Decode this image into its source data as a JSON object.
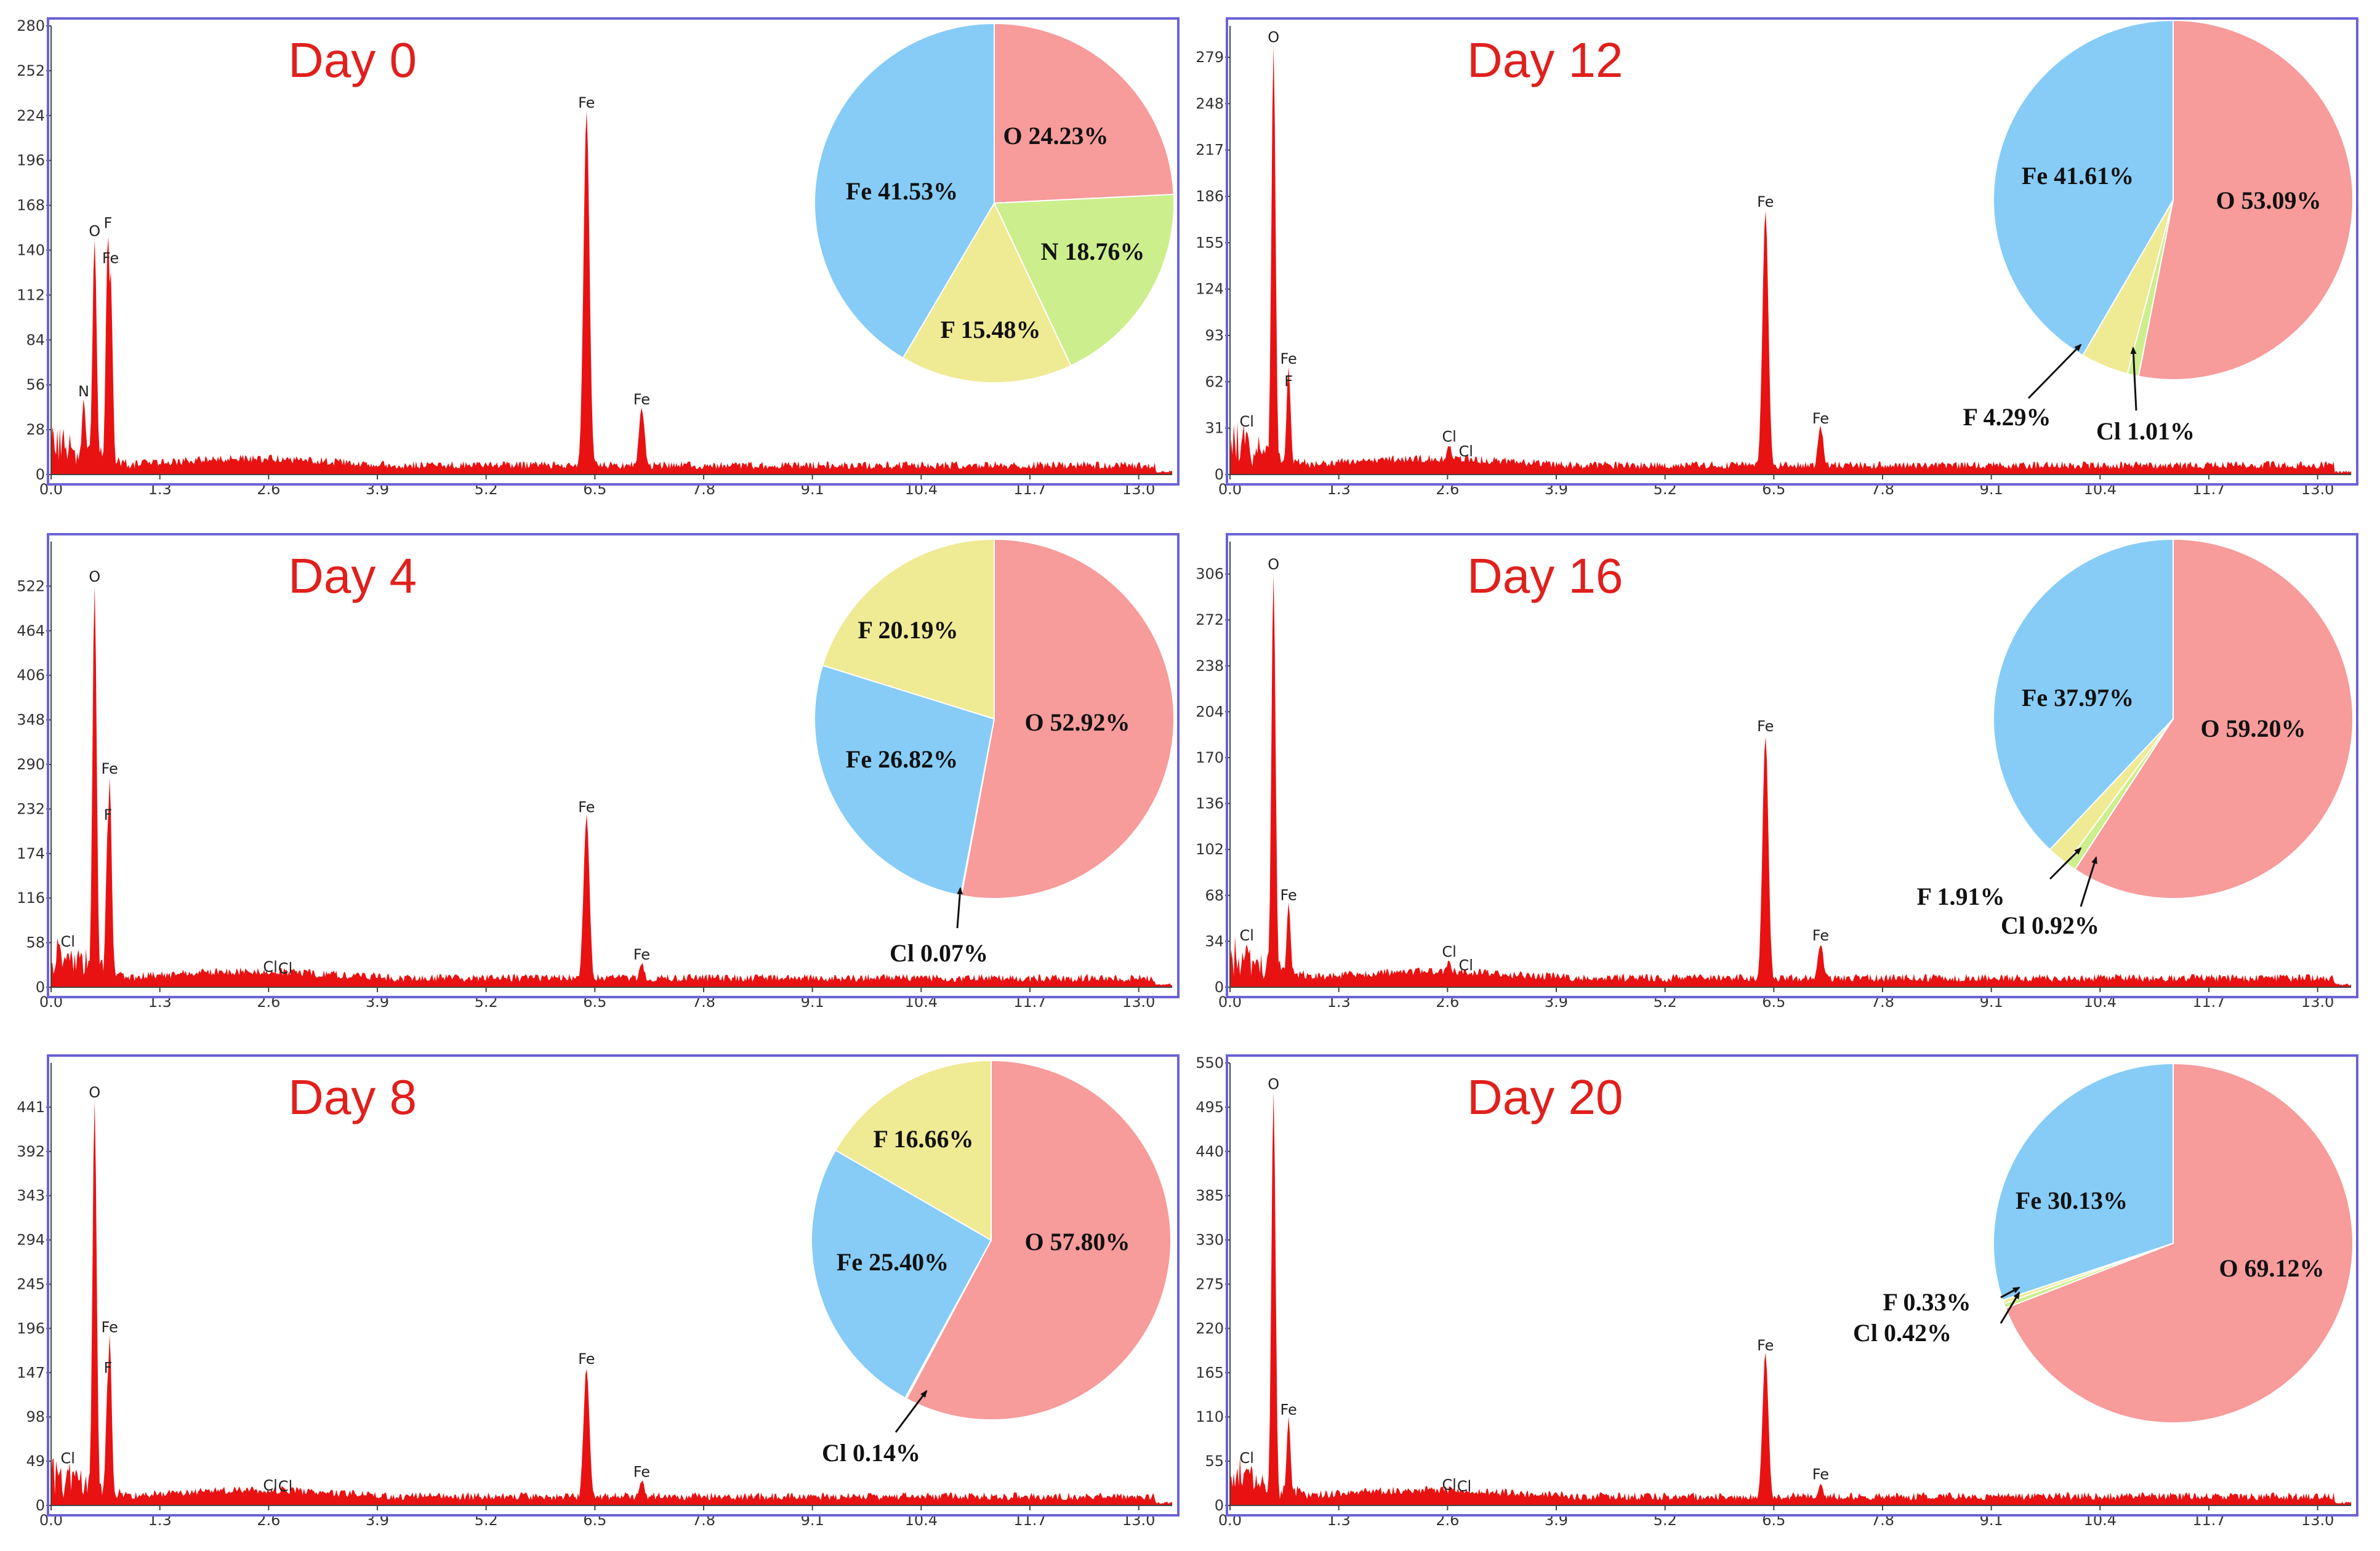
{
  "chart_data": [
    {
      "type": "spectrum+pie",
      "title": "Day 0",
      "x_ticks": [
        "0.0",
        "1.3",
        "2.6",
        "3.9",
        "5.2",
        "6.5",
        "7.8",
        "9.1",
        "10.4",
        "11.7",
        "13.0"
      ],
      "xlim": [
        0,
        13.4
      ],
      "y_ticks": [
        "0",
        "28",
        "56",
        "84",
        "112",
        "140",
        "168",
        "196",
        "224",
        "252",
        "280"
      ],
      "ylim": [
        0,
        280
      ],
      "peaks": [
        {
          "label": "N",
          "x": 0.39,
          "y": 45
        },
        {
          "label": "O",
          "x": 0.52,
          "y": 145
        },
        {
          "label": "F",
          "x": 0.68,
          "y": 150
        },
        {
          "label": "Fe",
          "x": 0.71,
          "y": 128
        },
        {
          "label": "Fe",
          "x": 6.4,
          "y": 225
        },
        {
          "label": "Fe",
          "x": 7.06,
          "y": 40
        }
      ],
      "composition": [
        {
          "element": "O",
          "percent": 24.23,
          "label": "O  24.23%",
          "color": "#f79b9b"
        },
        {
          "element": "N",
          "percent": 18.76,
          "label": "N  18.76%",
          "color": "#cdee8c"
        },
        {
          "element": "F",
          "percent": 15.48,
          "label": "F  15.48%",
          "color": "#efea94"
        },
        {
          "element": "Fe",
          "percent": 41.53,
          "label": "Fe  41.53%",
          "color": "#86ccf7"
        }
      ]
    },
    {
      "type": "spectrum+pie",
      "title": "Day 12",
      "x_ticks": [
        "0.0",
        "1.3",
        "2.6",
        "3.9",
        "5.2",
        "6.5",
        "7.8",
        "9.1",
        "10.4",
        "11.7",
        "13.0"
      ],
      "xlim": [
        0,
        13.4
      ],
      "y_ticks": [
        "0",
        "31",
        "62",
        "93",
        "124",
        "155",
        "186",
        "217",
        "248",
        "279"
      ],
      "ylim": [
        0,
        300
      ],
      "peaks": [
        {
          "label": "Cl",
          "x": 0.2,
          "y": 28
        },
        {
          "label": "O",
          "x": 0.52,
          "y": 285
        },
        {
          "label": "Fe",
          "x": 0.7,
          "y": 70
        },
        {
          "label": "F",
          "x": 0.7,
          "y": 55
        },
        {
          "label": "Cl",
          "x": 2.62,
          "y": 18
        },
        {
          "label": "Cl",
          "x": 2.82,
          "y": 8
        },
        {
          "label": "Fe",
          "x": 6.4,
          "y": 175
        },
        {
          "label": "Fe",
          "x": 7.06,
          "y": 30
        }
      ],
      "composition": [
        {
          "element": "O",
          "percent": 53.09,
          "label": "O  53.09%",
          "color": "#f79b9b"
        },
        {
          "element": "Cl",
          "percent": 1.01,
          "label": "Cl  1.01%",
          "color": "#cdee8c"
        },
        {
          "element": "F",
          "percent": 4.29,
          "label": "F  4.29%",
          "color": "#efea94"
        },
        {
          "element": "Fe",
          "percent": 41.61,
          "label": "Fe  41.61%",
          "color": "#86ccf7"
        }
      ]
    },
    {
      "type": "spectrum+pie",
      "title": "Day 4",
      "x_ticks": [
        "0.0",
        "1.3",
        "2.6",
        "3.9",
        "5.2",
        "6.5",
        "7.8",
        "9.1",
        "10.4",
        "11.7",
        "13.0"
      ],
      "xlim": [
        0,
        13.4
      ],
      "y_ticks": [
        "0",
        "58",
        "116",
        "174",
        "232",
        "290",
        "348",
        "406",
        "464",
        "522"
      ],
      "ylim": [
        0,
        580
      ],
      "peaks": [
        {
          "label": "Cl",
          "x": 0.2,
          "y": 45
        },
        {
          "label": "O",
          "x": 0.52,
          "y": 520
        },
        {
          "label": "Fe",
          "x": 0.7,
          "y": 270
        },
        {
          "label": "F",
          "x": 0.68,
          "y": 210
        },
        {
          "label": "Cl",
          "x": 2.62,
          "y": 12
        },
        {
          "label": "Cl",
          "x": 2.8,
          "y": 10
        },
        {
          "label": "Fe",
          "x": 6.4,
          "y": 220
        },
        {
          "label": "Fe",
          "x": 7.06,
          "y": 28
        }
      ],
      "composition": [
        {
          "element": "O",
          "percent": 52.92,
          "label": "O  52.92%",
          "color": "#f79b9b"
        },
        {
          "element": "Cl",
          "percent": 0.07,
          "label": "Cl  0.07%",
          "color": "#cdee8c"
        },
        {
          "element": "Fe",
          "percent": 26.82,
          "label": "Fe  26.82%",
          "color": "#86ccf7"
        },
        {
          "element": "F",
          "percent": 20.19,
          "label": "F  20.19%",
          "color": "#efea94"
        }
      ]
    },
    {
      "type": "spectrum+pie",
      "title": "Day 16",
      "x_ticks": [
        "0.0",
        "1.3",
        "2.6",
        "3.9",
        "5.2",
        "6.5",
        "7.8",
        "9.1",
        "10.4",
        "11.7",
        "13.0"
      ],
      "xlim": [
        0,
        13.4
      ],
      "y_ticks": [
        "0",
        "34",
        "68",
        "102",
        "136",
        "170",
        "204",
        "238",
        "272",
        "306"
      ],
      "ylim": [
        0,
        330
      ],
      "peaks": [
        {
          "label": "Cl",
          "x": 0.2,
          "y": 30
        },
        {
          "label": "O",
          "x": 0.52,
          "y": 305
        },
        {
          "label": "Fe",
          "x": 0.7,
          "y": 60
        },
        {
          "label": "Cl",
          "x": 2.62,
          "y": 18
        },
        {
          "label": "Cl",
          "x": 2.82,
          "y": 8
        },
        {
          "label": "Fe",
          "x": 6.4,
          "y": 185
        },
        {
          "label": "Fe",
          "x": 7.06,
          "y": 30
        }
      ],
      "composition": [
        {
          "element": "O",
          "percent": 59.2,
          "label": "O  59.20%",
          "color": "#f79b9b"
        },
        {
          "element": "Cl",
          "percent": 0.92,
          "label": "Cl  0.92%",
          "color": "#cdee8c"
        },
        {
          "element": "F",
          "percent": 1.91,
          "label": "F  1.91%",
          "color": "#efea94"
        },
        {
          "element": "Fe",
          "percent": 37.97,
          "label": "Fe  37.97%",
          "color": "#86ccf7"
        }
      ]
    },
    {
      "type": "spectrum+pie",
      "title": "Day 8",
      "x_ticks": [
        "0.0",
        "1.3",
        "2.6",
        "3.9",
        "5.2",
        "6.5",
        "7.8",
        "9.1",
        "10.4",
        "11.7",
        "13.0"
      ],
      "xlim": [
        0,
        13.4
      ],
      "y_ticks": [
        "0",
        "49",
        "98",
        "147",
        "196",
        "245",
        "294",
        "343",
        "392",
        "441"
      ],
      "ylim": [
        0,
        490
      ],
      "peaks": [
        {
          "label": "Cl",
          "x": 0.2,
          "y": 40
        },
        {
          "label": "O",
          "x": 0.52,
          "y": 445
        },
        {
          "label": "Fe",
          "x": 0.7,
          "y": 185
        },
        {
          "label": "F",
          "x": 0.68,
          "y": 140
        },
        {
          "label": "Cl",
          "x": 2.62,
          "y": 10
        },
        {
          "label": "Cl",
          "x": 2.8,
          "y": 9
        },
        {
          "label": "Fe",
          "x": 6.4,
          "y": 150
        },
        {
          "label": "Fe",
          "x": 7.06,
          "y": 25
        }
      ],
      "composition": [
        {
          "element": "O",
          "percent": 57.8,
          "label": "O  57.80%",
          "color": "#f79b9b"
        },
        {
          "element": "Cl",
          "percent": 0.14,
          "label": "Cl  0.14%",
          "color": "#cdee8c"
        },
        {
          "element": "Fe",
          "percent": 25.4,
          "label": "Fe  25.40%",
          "color": "#86ccf7"
        },
        {
          "element": "F",
          "percent": 16.66,
          "label": "F  16.66%",
          "color": "#efea94"
        }
      ]
    },
    {
      "type": "spectrum+pie",
      "title": "Day 20",
      "x_ticks": [
        "0.0",
        "1.3",
        "2.6",
        "3.9",
        "5.2",
        "6.5",
        "7.8",
        "9.1",
        "10.4",
        "11.7",
        "13.0"
      ],
      "xlim": [
        0,
        13.4
      ],
      "y_ticks": [
        "0",
        "55",
        "110",
        "165",
        "220",
        "275",
        "330",
        "385",
        "440",
        "495",
        "550"
      ],
      "ylim": [
        0,
        550
      ],
      "peaks": [
        {
          "label": "Cl",
          "x": 0.2,
          "y": 45
        },
        {
          "label": "O",
          "x": 0.52,
          "y": 510
        },
        {
          "label": "Fe",
          "x": 0.7,
          "y": 105
        },
        {
          "label": "Cl",
          "x": 2.62,
          "y": 12
        },
        {
          "label": "Cl",
          "x": 2.8,
          "y": 10
        },
        {
          "label": "Fe",
          "x": 6.4,
          "y": 185
        },
        {
          "label": "Fe",
          "x": 7.06,
          "y": 25
        }
      ],
      "composition": [
        {
          "element": "O",
          "percent": 69.12,
          "label": "O  69.12%",
          "color": "#f79b9b"
        },
        {
          "element": "Cl",
          "percent": 0.42,
          "label": "Cl  0.42%",
          "color": "#cdee8c"
        },
        {
          "element": "F",
          "percent": 0.33,
          "label": "F  0.33%",
          "color": "#efea94"
        },
        {
          "element": "Fe",
          "percent": 30.13,
          "label": "Fe  30.13%",
          "color": "#86ccf7"
        }
      ]
    }
  ]
}
